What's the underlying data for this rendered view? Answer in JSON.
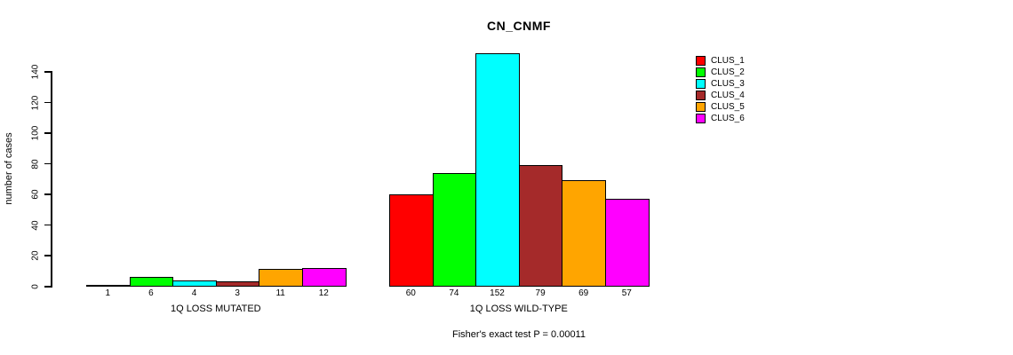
{
  "chart_data": {
    "type": "bar",
    "title": "CN_CNMF",
    "ylabel": "number of cases",
    "xlabel": "",
    "ylim": [
      0,
      140
    ],
    "yticks": [
      0,
      20,
      40,
      60,
      80,
      100,
      120,
      140
    ],
    "grid": false,
    "annotation": "Fisher's exact test P = 0.00011",
    "bar_colors": [
      "#FF0000",
      "#00FF00",
      "#00FFFF",
      "#A52A2A",
      "#FFA500",
      "#FF00FF"
    ],
    "groups": [
      {
        "label": "1Q LOSS MUTATED",
        "categories": [
          "CLUS_1",
          "CLUS_2",
          "CLUS_3",
          "CLUS_4",
          "CLUS_5",
          "CLUS_6"
        ],
        "values": [
          1,
          6,
          4,
          3,
          11,
          12
        ]
      },
      {
        "label": "1Q LOSS WILD-TYPE",
        "categories": [
          "CLUS_1",
          "CLUS_2",
          "CLUS_3",
          "CLUS_4",
          "CLUS_5",
          "CLUS_6"
        ],
        "values": [
          60,
          74,
          152,
          79,
          69,
          57
        ]
      }
    ],
    "legend": {
      "position": "right",
      "entries": [
        {
          "label": "CLUS_1",
          "color": "#FF0000"
        },
        {
          "label": "CLUS_2",
          "color": "#00FF00"
        },
        {
          "label": "CLUS_3",
          "color": "#00FFFF"
        },
        {
          "label": "CLUS_4",
          "color": "#A52A2A"
        },
        {
          "label": "CLUS_5",
          "color": "#FFA500"
        },
        {
          "label": "CLUS_6",
          "color": "#FF00FF"
        }
      ]
    }
  }
}
